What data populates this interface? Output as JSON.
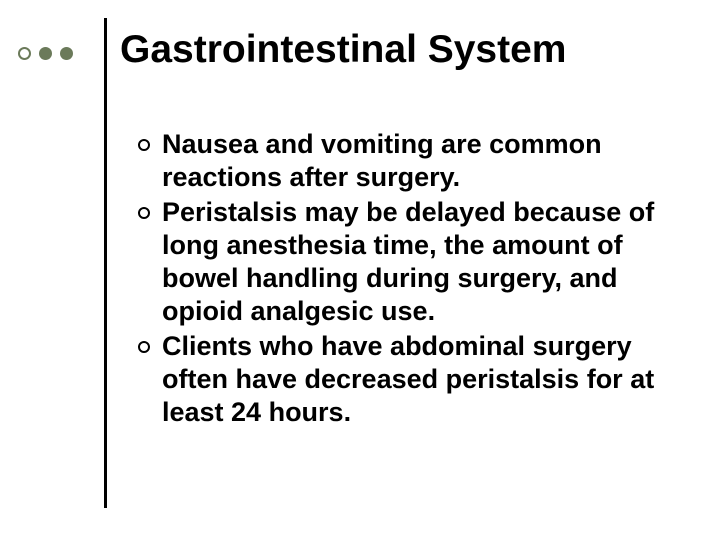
{
  "slide": {
    "title": "Gastrointestinal System",
    "title_fontsize": 39,
    "title_color": "#000000",
    "background_color": "#ffffff",
    "divider_color": "#000000",
    "decorator": {
      "dots": [
        {
          "type": "hollow",
          "color": "#6b7a5a"
        },
        {
          "type": "solid",
          "color": "#6b7a5a"
        },
        {
          "type": "solid",
          "color": "#6b7a5a"
        }
      ]
    },
    "bullets": [
      "Nausea and vomiting are common reactions after surgery.",
      "Peristalsis may be delayed because of long anesthesia time, the amount of bowel handling during surgery, and opioid analgesic use.",
      "Clients who have abdominal surgery often have decreased peristalsis for at least 24 hours."
    ],
    "bullet_style": {
      "fontsize": 27,
      "font_weight": "bold",
      "color": "#000000",
      "marker": "hollow-circle",
      "marker_color": "#000000",
      "marker_size": 12
    }
  }
}
